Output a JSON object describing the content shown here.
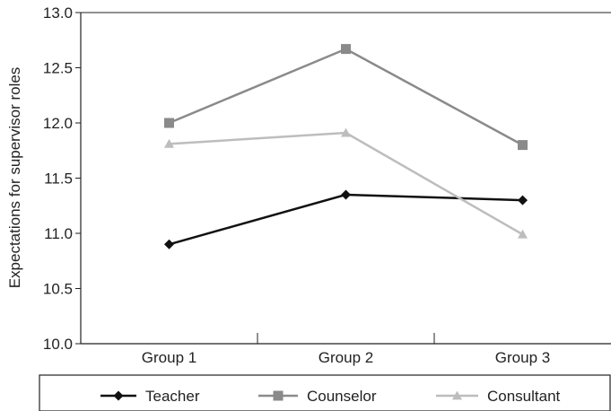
{
  "chart_data": {
    "type": "line",
    "title": "",
    "xlabel": "",
    "ylabel": "Expectations for supervisor roles",
    "categories": [
      "Group 1",
      "Group 2",
      "Group 3"
    ],
    "ylim": [
      10.0,
      13.0
    ],
    "yticks": [
      "10.0",
      "10.5",
      "11.0",
      "11.5",
      "12.0",
      "12.5",
      "13.0"
    ],
    "grid": false,
    "legend_position": "bottom",
    "series": [
      {
        "name": "Teacher",
        "values": [
          10.9,
          11.35,
          11.3
        ],
        "color": "#111111",
        "marker": "diamond"
      },
      {
        "name": "Counselor",
        "values": [
          12.0,
          12.67,
          11.8
        ],
        "color": "#8a8a8a",
        "marker": "square"
      },
      {
        "name": "Consultant",
        "values": [
          11.81,
          11.91,
          10.99
        ],
        "color": "#bdbdbd",
        "marker": "triangle"
      }
    ]
  }
}
